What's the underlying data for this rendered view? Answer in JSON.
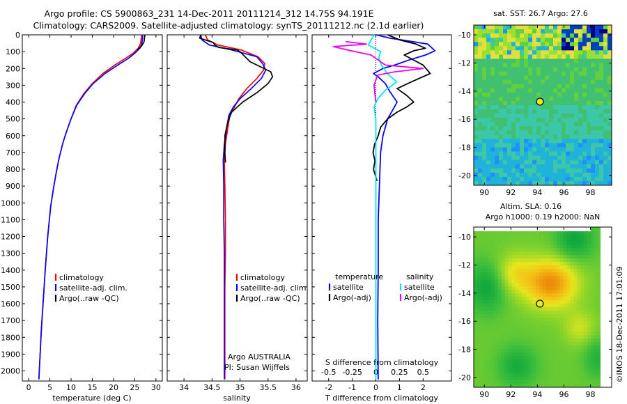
{
  "header": {
    "line1": "Argo profile: CS 5900863_231 14-Dec-2011 20111214_312 14.75S 94.191E",
    "line2": "Climatology: CARS2009. Satellite-adjusted climatology: synTS_20111212.nc (2.1d earlier)"
  },
  "credits": {
    "argo": "Argo AUSTRALIA",
    "pi": "PI: Susan Wijffels",
    "imos": "©IMOS 18-Dec-2011 17:01:09"
  },
  "depth_axis": {
    "ticks": [
      0,
      100,
      200,
      300,
      400,
      500,
      600,
      700,
      800,
      900,
      1000,
      1100,
      1200,
      1300,
      1400,
      1500,
      1600,
      1700,
      1800,
      1900,
      2000
    ],
    "range": [
      0,
      2060
    ]
  },
  "colors": {
    "climatology": "#ff0000",
    "satellite": "#0000ff",
    "argo": "#000000",
    "cyan": "#00e5ee",
    "magenta": "#ee00ee"
  },
  "chart_data": [
    {
      "type": "line",
      "id": "temperature",
      "xlabel": "temperature (deg C)",
      "xlim": [
        -1.5,
        31.5
      ],
      "xticks": [
        0,
        5,
        10,
        15,
        20,
        25,
        30
      ],
      "legend": {
        "placement": "bottom-left",
        "entries": [
          "climatology",
          "satellite-adj. clim.",
          "Argo(..raw -QC)"
        ]
      },
      "series": [
        {
          "name": "climatology",
          "color": "#ff0000",
          "x": [
            26.6,
            26.4,
            25.8,
            24.6,
            22.8,
            20.3,
            17.5,
            15.0,
            13.0,
            11.2,
            10.0,
            9.0,
            8.1,
            7.2,
            6.5,
            5.8,
            5.2,
            4.5,
            3.9,
            3.4,
            3.0,
            2.7,
            2.5,
            2.4
          ],
          "y": [
            0,
            50,
            80,
            110,
            140,
            180,
            230,
            290,
            350,
            420,
            500,
            570,
            640,
            730,
            820,
            920,
            1020,
            1200,
            1400,
            1600,
            1750,
            1900,
            2000,
            2050
          ]
        },
        {
          "name": "satellite-adj. clim.",
          "color": "#0000ff",
          "x": [
            26.9,
            26.7,
            26.2,
            25.0,
            23.5,
            21.0,
            18.0,
            15.2,
            13.2,
            11.3,
            10.0,
            9.0,
            8.1,
            7.2,
            6.5,
            5.8,
            5.2,
            4.5,
            3.9,
            3.4,
            3.0,
            2.7,
            2.5,
            2.4
          ],
          "y": [
            0,
            50,
            80,
            110,
            140,
            180,
            230,
            290,
            350,
            420,
            500,
            570,
            640,
            730,
            820,
            920,
            1020,
            1200,
            1400,
            1600,
            1750,
            1900,
            2000,
            2050
          ]
        },
        {
          "name": "Argo(..raw -QC)",
          "color": "#000000",
          "x": [
            27.4,
            27.3,
            27.2,
            26.9,
            26.5,
            25.5
          ],
          "y": [
            0,
            20,
            40,
            55,
            70,
            90
          ]
        }
      ]
    },
    {
      "type": "line",
      "id": "salinity",
      "xlabel": "salinity",
      "xlim": [
        33.7,
        36.2
      ],
      "xticks": [
        34,
        34.5,
        35,
        35.5,
        36
      ],
      "legend": {
        "placement": "bottom-right",
        "entries": [
          "climatology",
          "satellite-adj. clim.",
          "Argo(..raw -QC)"
        ]
      },
      "series": [
        {
          "name": "climatology",
          "color": "#ff0000",
          "x": [
            34.38,
            34.42,
            34.6,
            35.02,
            35.32,
            35.44,
            35.42,
            35.3,
            35.12,
            34.98,
            34.9,
            34.82,
            34.78,
            34.74,
            34.72,
            34.73,
            34.74,
            34.74,
            34.73,
            34.73,
            34.73,
            34.73
          ],
          "y": [
            0,
            30,
            60,
            90,
            130,
            170,
            210,
            260,
            320,
            380,
            430,
            480,
            560,
            650,
            750,
            900,
            1100,
            1300,
            1500,
            1700,
            1900,
            2050
          ]
        },
        {
          "name": "satellite-adj. clim.",
          "color": "#0000ff",
          "x": [
            34.3,
            34.32,
            34.45,
            34.85,
            35.3,
            35.4,
            35.46,
            35.38,
            35.2,
            35.0,
            34.88,
            34.8,
            34.76,
            34.72,
            34.7,
            34.71,
            34.71,
            34.72,
            34.72,
            34.72,
            34.72,
            34.72
          ],
          "y": [
            0,
            30,
            60,
            90,
            130,
            170,
            210,
            260,
            320,
            380,
            430,
            480,
            560,
            650,
            750,
            900,
            1100,
            1300,
            1500,
            1700,
            1900,
            2050
          ]
        },
        {
          "name": "Argo(..raw -QC)",
          "color": "#000000",
          "x": [
            34.3,
            34.28,
            34.52,
            34.55,
            34.62,
            34.95,
            35.0,
            35.18,
            35.55,
            35.58,
            35.5,
            35.32,
            35.05,
            34.85,
            34.78,
            34.73,
            34.73,
            34.74
          ],
          "y": [
            0,
            20,
            45,
            60,
            75,
            90,
            100,
            160,
            220,
            250,
            290,
            340,
            400,
            460,
            520,
            600,
            700,
            760
          ]
        }
      ]
    },
    {
      "type": "line",
      "id": "differences",
      "xlabel_bottom": "T difference from climatology",
      "xlabel_top": "S difference from climatology",
      "tlim": [
        -2.7,
        3.2
      ],
      "xticks_T": [
        -2,
        -1,
        0,
        1,
        2
      ],
      "xticks_S": [
        -0.5,
        -0.25,
        0,
        0.25,
        0.5
      ],
      "legend": {
        "placement": "bottom",
        "groups": [
          {
            "title": "temperature",
            "entries": [
              "satellite",
              "Argo(-adj)"
            ]
          },
          {
            "title": "salinity",
            "entries": [
              "satellite",
              "Argo(-adj)"
            ]
          }
        ]
      },
      "series": [
        {
          "name": "temperature satellite",
          "color": "#0000ff",
          "x": [
            0.0,
            0.3,
            0.6,
            1.3,
            2.2,
            2.5,
            2.1,
            1.4,
            0.8,
            0.3,
            -0.1,
            0.1,
            0.4,
            0.6,
            0.9,
            0.7,
            0.5,
            0.3,
            0.2,
            0.15,
            0.1,
            0.1,
            0.08,
            0.1
          ],
          "y": [
            0,
            10,
            20,
            35,
            55,
            95,
            120,
            150,
            180,
            200,
            230,
            250,
            290,
            340,
            400,
            450,
            500,
            600,
            700,
            900,
            1100,
            1400,
            1700,
            2050
          ]
        },
        {
          "name": "temperature Argo(-adj)",
          "color": "#000000",
          "x": [
            0.5,
            1.0,
            1.7,
            2.1,
            1.6,
            1.2,
            2.0,
            2.3,
            1.5,
            0.9,
            1.3,
            1.6,
            1.3,
            0.9,
            0.5,
            0.2,
            0.1,
            -0.05,
            -0.12,
            -0.04,
            -0.1,
            0.05
          ],
          "y": [
            0,
            30,
            55,
            80,
            95,
            120,
            180,
            230,
            280,
            320,
            360,
            400,
            430,
            460,
            500,
            550,
            600,
            650,
            700,
            750,
            800,
            870
          ]
        },
        {
          "name": "salinity satellite",
          "color": "#00e5ee",
          "x": [
            -0.02,
            -0.05,
            -0.08,
            0.05,
            0.03,
            0.06,
            0.12,
            0.22,
            0.1,
            0.02,
            -0.02,
            0.0,
            0.0,
            0.0,
            0.0,
            0.0,
            0.0,
            0.0
          ],
          "y": [
            0,
            30,
            60,
            100,
            140,
            180,
            230,
            280,
            330,
            380,
            430,
            500,
            600,
            800,
            1000,
            1300,
            1700,
            2050
          ]
        },
        {
          "name": "salinity Argo(-adj)",
          "color": "#ee00ee",
          "x": [
            -0.32,
            -0.1,
            -0.45,
            -0.3,
            -0.05,
            0.1,
            0.5,
            0.2,
            0.02,
            -0.02,
            0.0
          ],
          "y": [
            40,
            55,
            70,
            90,
            120,
            180,
            200,
            220,
            240,
            300,
            400
          ]
        }
      ]
    },
    {
      "type": "heatmap",
      "id": "sst_map",
      "title": "sat. SST: 26.7  Argo: 27.6",
      "xticks": [
        90,
        92,
        94,
        96,
        98
      ],
      "yticks": [
        -10,
        -12,
        -14,
        -16,
        -18,
        -20
      ],
      "xlim": [
        89.2,
        99.6
      ],
      "ylim": [
        -20.7,
        -9.3
      ],
      "marker": {
        "lon": 94.19,
        "lat": -14.75
      }
    },
    {
      "type": "heatmap",
      "id": "sla_map",
      "title_line1": "Altim. SLA: 0.16",
      "title_line2": "Argo h1000: 0.19 h2000: NaN",
      "xticks": [
        90,
        92,
        94,
        96,
        98
      ],
      "yticks": [
        -10,
        -12,
        -14,
        -16,
        -18,
        -20
      ],
      "xlim": [
        89.2,
        99.6
      ],
      "ylim": [
        -20.7,
        -9.3
      ],
      "marker": {
        "lon": 94.19,
        "lat": -14.75
      }
    }
  ]
}
